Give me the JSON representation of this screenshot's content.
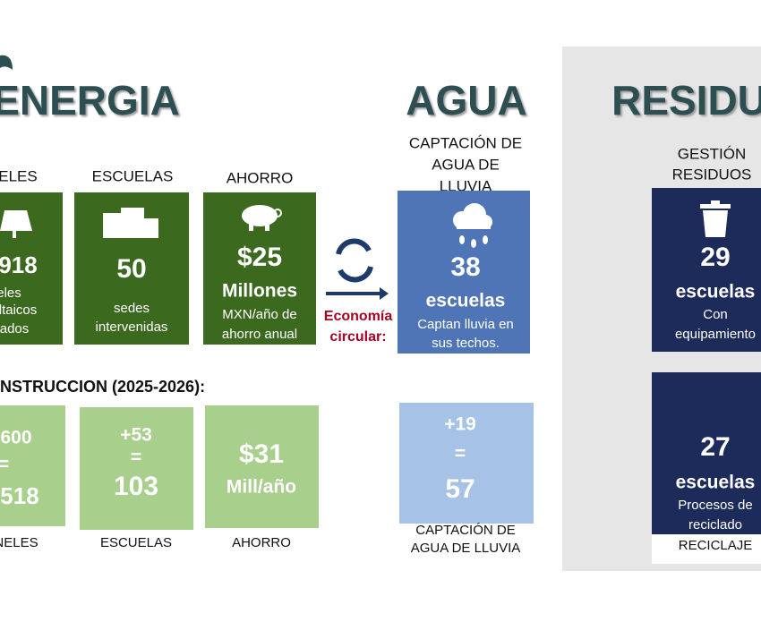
{
  "energia": {
    "title": "ENERGIA",
    "labels": [
      "ELES",
      "ESCUELAS",
      "AHORRO"
    ],
    "cards": [
      {
        "value": "918",
        "lines": [
          "eles",
          "ltaicos",
          "ados"
        ]
      },
      {
        "value": "50",
        "lines": [
          "sedes",
          "intervenidas"
        ]
      },
      {
        "value": "$25",
        "unit": "Millones",
        "lines": [
          "MXN/año de",
          "ahorro anual"
        ]
      }
    ]
  },
  "circular": [
    "Economía",
    "circular:"
  ],
  "agua": {
    "title": "AGUA",
    "label": [
      "CAPTACIÓN DE",
      "AGUA DE",
      "LLUVIA"
    ],
    "card": {
      "value": "38",
      "unit": "escuelas",
      "lines": [
        "Captan lluvia en",
        "sus techos."
      ]
    }
  },
  "residuos": {
    "title": "RESIDU",
    "label": [
      "GESTIÓN",
      "RESIDUOS"
    ],
    "card": {
      "value": "29",
      "unit": "escuelas",
      "lines": [
        "Con",
        "equipamiento"
      ]
    }
  },
  "construccion": {
    "title": "NSTRUCCION (2025-2026):",
    "cards": [
      {
        "lines": [
          "600",
          "=",
          "518"
        ],
        "label": "NELES"
      },
      {
        "lines": [
          "+53",
          "=",
          "103"
        ],
        "label": "ESCUELAS"
      },
      {
        "lines": [
          "$31",
          "Mill/año"
        ],
        "label": "AHORRO"
      },
      {
        "lines": [
          "+19",
          "=",
          "57"
        ],
        "label": [
          "CAPTACIÓN DE",
          "AGUA DE LLUVIA"
        ]
      },
      {
        "value": "27",
        "unit": "escuelas",
        "lines": [
          "Procesos de",
          "reciclado"
        ],
        "label": "RECICLAJE"
      }
    ]
  }
}
